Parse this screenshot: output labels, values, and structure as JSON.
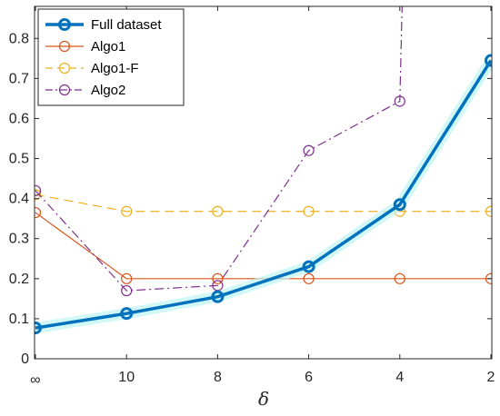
{
  "chart_data": {
    "type": "line",
    "title": "",
    "xlabel": "δ",
    "ylabel": "",
    "categories": [
      "∞",
      "10",
      "8",
      "6",
      "4",
      "2"
    ],
    "ylim": [
      0,
      0.88
    ],
    "yticks": [
      0,
      0.1,
      0.2,
      0.3,
      0.4,
      0.5,
      0.6,
      0.7,
      0.8
    ],
    "grid": false,
    "legend_position": "top-left",
    "series": [
      {
        "name": "Full dataset",
        "values": [
          0.077,
          0.113,
          0.155,
          0.23,
          0.385,
          0.745
        ],
        "color": "#0072BD",
        "line_style": "solid",
        "marker": "circle"
      },
      {
        "name": "Algo1",
        "values": [
          0.365,
          0.2,
          0.2,
          0.2,
          0.2,
          0.2
        ],
        "color": "#D95319",
        "line_style": "solid",
        "marker": "circle"
      },
      {
        "name": "Algo1-F",
        "values": [
          0.41,
          0.368,
          0.368,
          0.368,
          0.368,
          0.368
        ],
        "color": "#EDB120",
        "line_style": "dashed",
        "marker": "circle"
      },
      {
        "name": "Algo2",
        "values": [
          0.42,
          0.17,
          0.183,
          0.52,
          0.643,
          null
        ],
        "color": "#7E2F8E",
        "line_style": "dashdot",
        "marker": "circle",
        "continues_above": {
          "from_index": 4,
          "x": 4.03
        }
      }
    ]
  }
}
